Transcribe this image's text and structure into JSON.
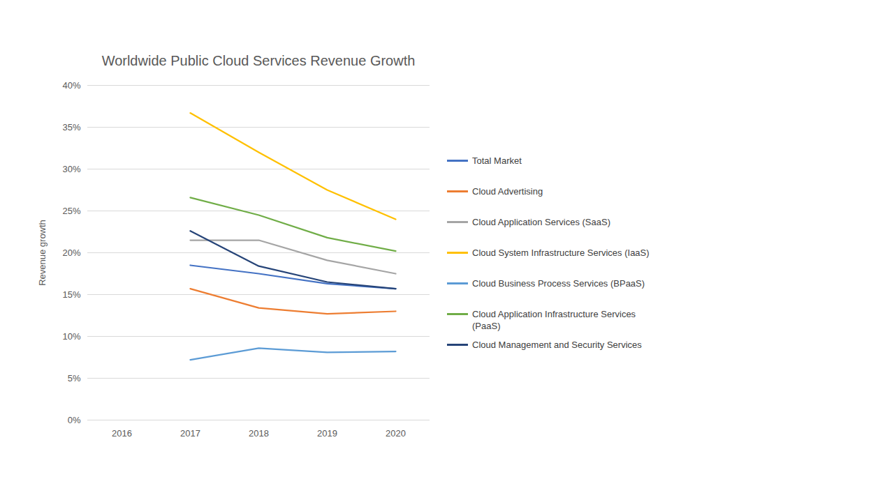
{
  "chart_data": {
    "type": "line",
    "title": "Worldwide Public Cloud Services Revenue Growth",
    "y_label": "Revenue growth",
    "categories": [
      "2016",
      "2017",
      "2018",
      "2019",
      "2020"
    ],
    "series": [
      {
        "name": "Total Market",
        "color": "#4472c4",
        "values": [
          null,
          18.5,
          17.5,
          16.3,
          15.7
        ]
      },
      {
        "name": "Cloud Advertising",
        "color": "#ed7d31",
        "values": [
          null,
          15.7,
          13.4,
          12.7,
          13.0
        ]
      },
      {
        "name": "Cloud Application Services (SaaS)",
        "color": "#a5a5a5",
        "values": [
          null,
          21.5,
          21.5,
          19.1,
          17.5
        ]
      },
      {
        "name": "Cloud System Infrastructure Services (IaaS)",
        "color": "#ffc000",
        "values": [
          null,
          36.7,
          32.0,
          27.5,
          24.0
        ]
      },
      {
        "name": "Cloud Business Process Services (BPaaS)",
        "color": "#5b9bd5",
        "values": [
          null,
          7.2,
          8.6,
          8.1,
          8.2
        ]
      },
      {
        "name": "Cloud Application Infrastructure Services (PaaS)",
        "color": "#70ad47",
        "values": [
          null,
          26.6,
          24.5,
          21.8,
          20.2
        ]
      },
      {
        "name": "Cloud Management and Security Services",
        "color": "#264478",
        "values": [
          null,
          22.6,
          18.4,
          16.5,
          15.7
        ]
      }
    ],
    "ylim": [
      0,
      40
    ],
    "yticks": [
      {
        "value": 0,
        "label": "0%"
      },
      {
        "value": 5,
        "label": "5%"
      },
      {
        "value": 10,
        "label": "10%"
      },
      {
        "value": 15,
        "label": "15%"
      },
      {
        "value": 20,
        "label": "20%"
      },
      {
        "value": 25,
        "label": "25%"
      },
      {
        "value": 30,
        "label": "30%"
      },
      {
        "value": 35,
        "label": "35%"
      },
      {
        "value": 40,
        "label": "40%"
      }
    ],
    "grid": true,
    "legend": "right"
  }
}
